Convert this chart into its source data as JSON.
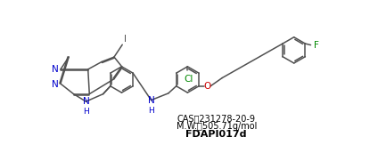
{
  "background_color": "#ffffff",
  "line_color": "#505050",
  "N_color": "#0000cc",
  "O_color": "#cc0000",
  "F_color": "#008800",
  "Cl_color": "#008800",
  "figsize": [
    4.24,
    1.81
  ],
  "dpi": 100,
  "cas": "CAS : 231278-20-9",
  "mw": "M.W. : 505.71g/mol",
  "id": "FDAPI017d"
}
